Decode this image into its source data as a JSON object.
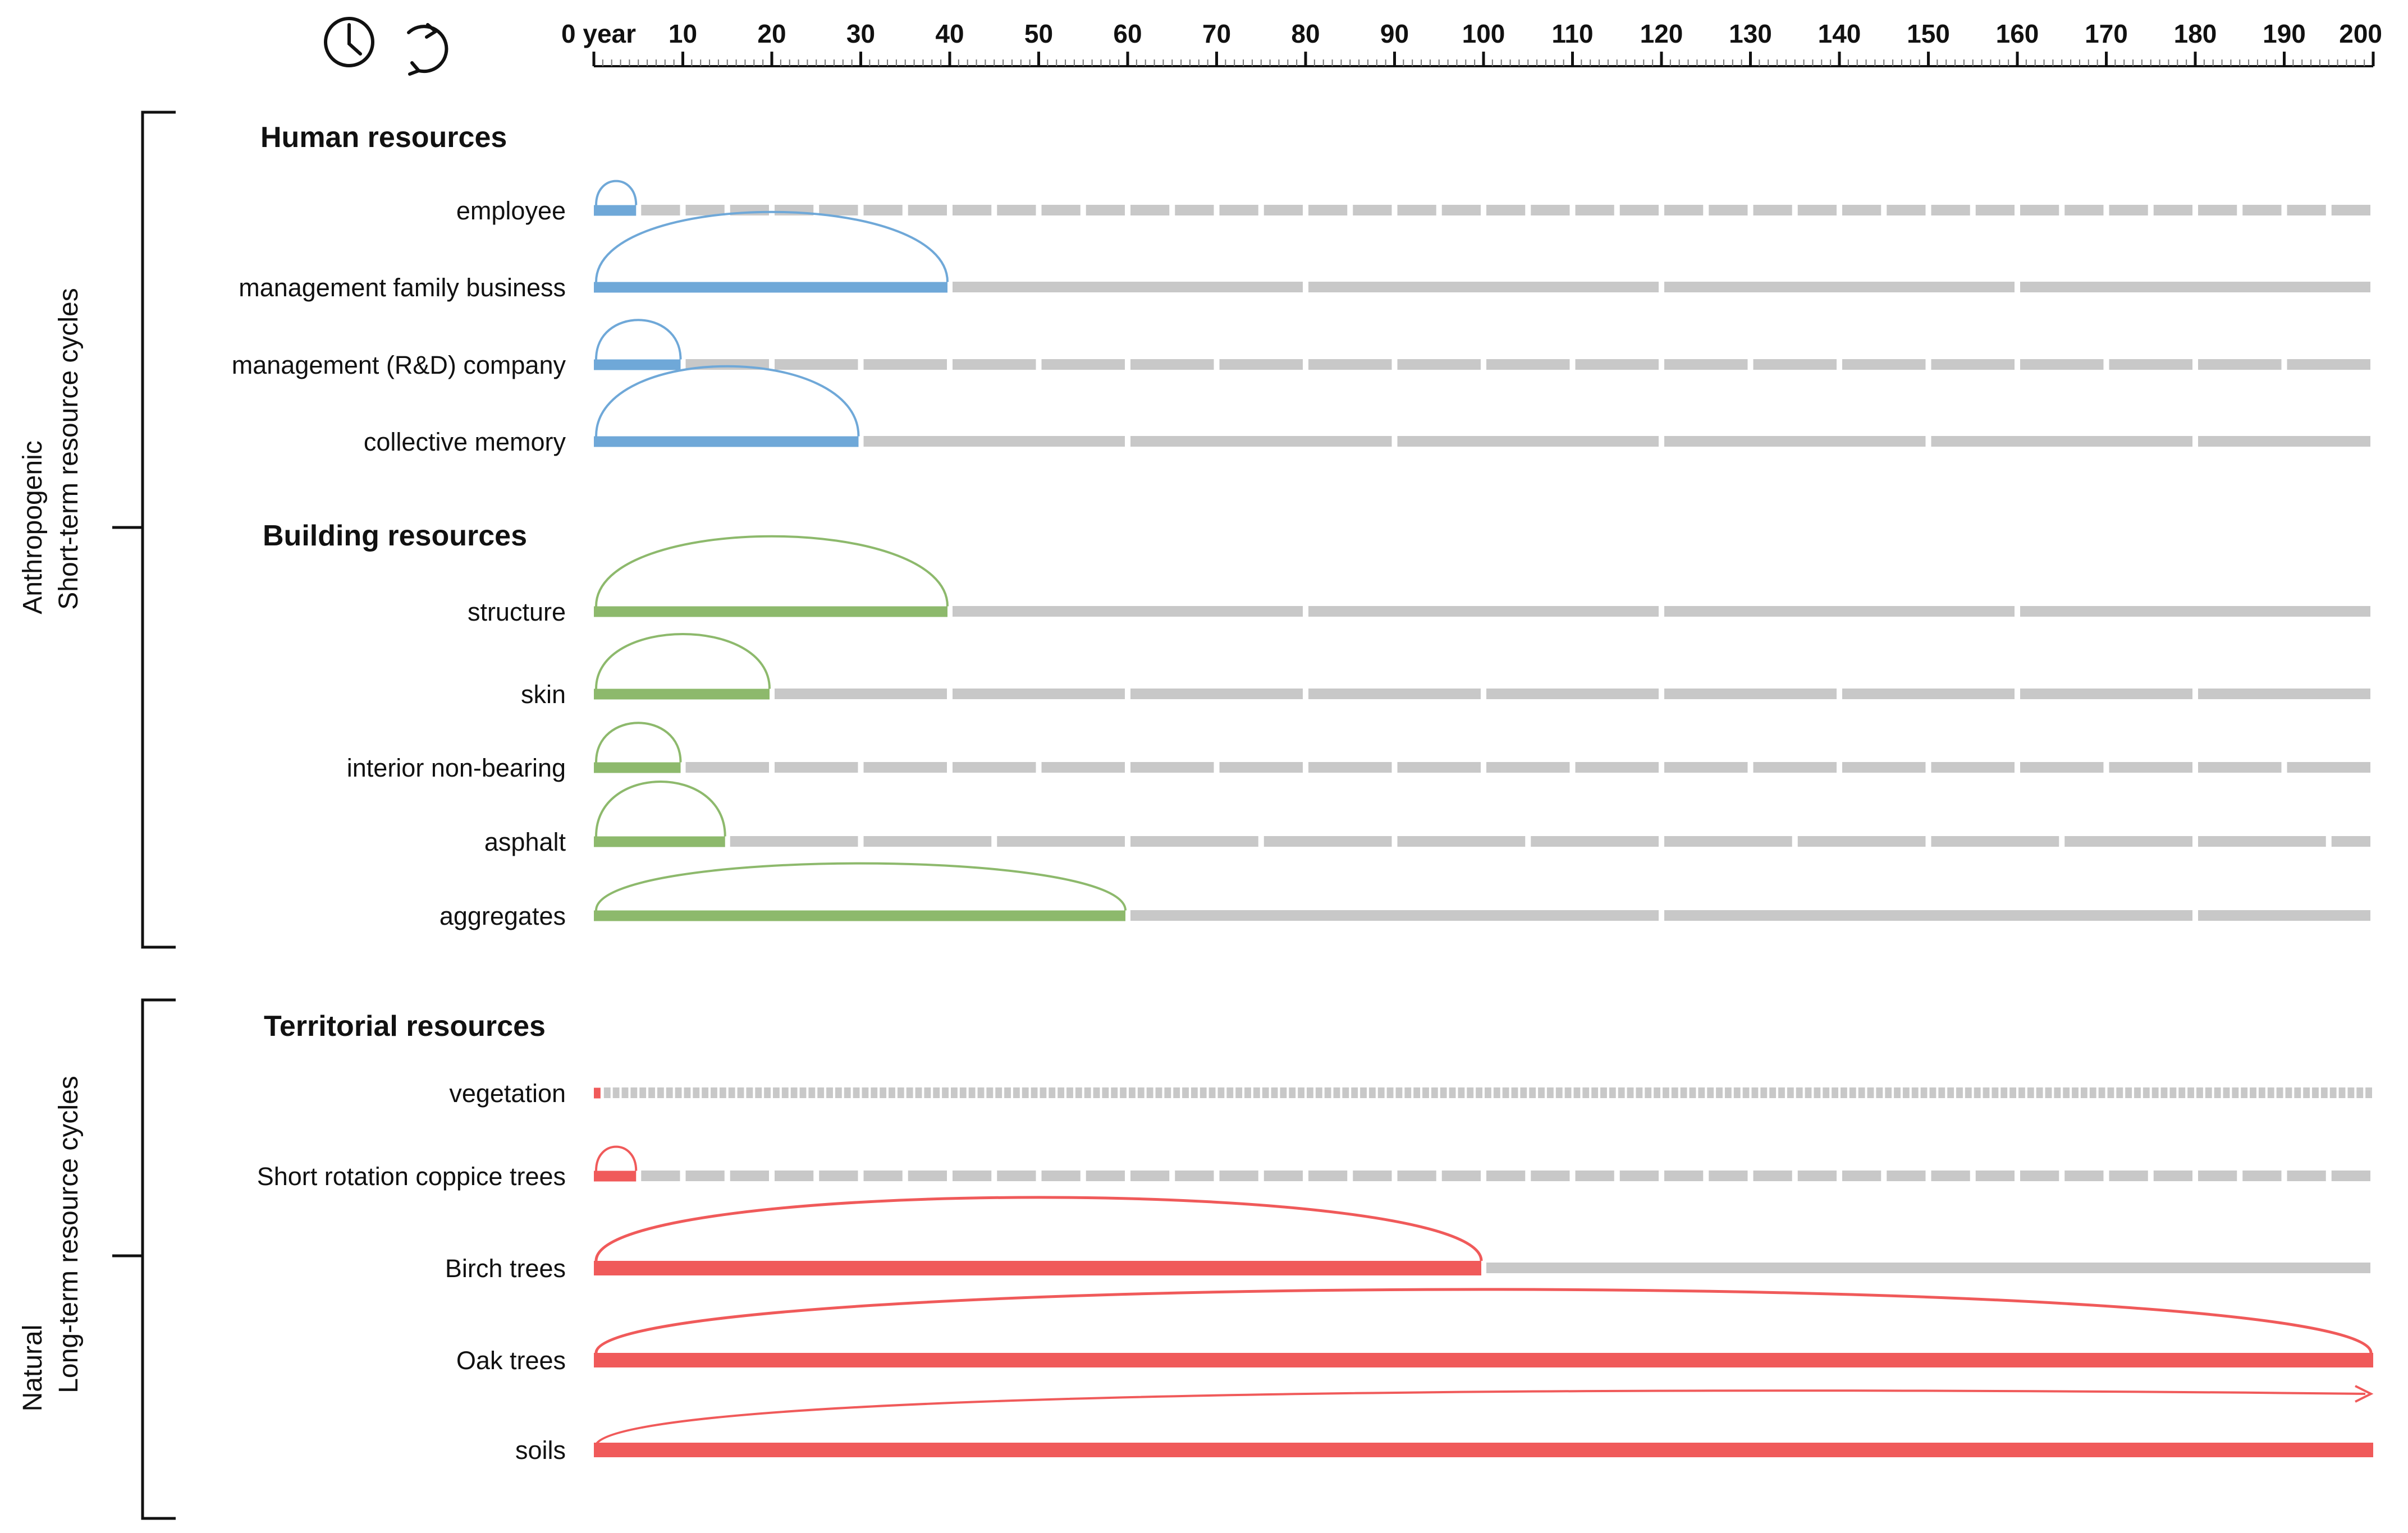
{
  "axis": {
    "min": 0,
    "max": 200,
    "major_step": 10,
    "minor_step": 1,
    "tick_labels": [
      "0 year",
      "10",
      "20",
      "30",
      "40",
      "50",
      "60",
      "70",
      "80",
      "90",
      "100",
      "110",
      "120",
      "130",
      "140",
      "150",
      "160",
      "170",
      "180",
      "190",
      "200"
    ]
  },
  "icons": [
    "clock-icon",
    "cycle-arrow-icon"
  ],
  "colors": {
    "human": "#6fa8d8",
    "building": "#8db96c",
    "territorial": "#f05a5a",
    "repeat": "#c8c8c8",
    "text": "#111111"
  },
  "categories": [
    {
      "line1": "Anthropogenic",
      "line2": "Short-term resource cycles"
    },
    {
      "line1": "Natural",
      "line2": "Long-term resource cycles"
    }
  ],
  "groups": [
    {
      "title": "Human resources",
      "color_key": "human",
      "rows": [
        {
          "label": "employee",
          "cycle_years": 5
        },
        {
          "label": "management family business",
          "cycle_years": 40
        },
        {
          "label": "management (R&D) company",
          "cycle_years": 10
        },
        {
          "label": "collective memory",
          "cycle_years": 30
        }
      ]
    },
    {
      "title": "Building resources",
      "color_key": "building",
      "rows": [
        {
          "label": "structure",
          "cycle_years": 40
        },
        {
          "label": "skin",
          "cycle_years": 20
        },
        {
          "label": "interior non-bearing",
          "cycle_years": 10
        },
        {
          "label": "asphalt",
          "cycle_years": 15
        },
        {
          "label": "aggregates",
          "cycle_years": 60
        }
      ]
    },
    {
      "title": "Territorial resources",
      "color_key": "territorial",
      "rows": [
        {
          "label": "vegetation",
          "cycle_years": 1
        },
        {
          "label": "Short rotation coppice trees",
          "cycle_years": 5
        },
        {
          "label": "Birch trees",
          "cycle_years": 100
        },
        {
          "label": "Oak trees",
          "cycle_years": 200
        },
        {
          "label": "soils",
          "cycle_years": 200,
          "open_ended": true
        }
      ]
    }
  ]
}
